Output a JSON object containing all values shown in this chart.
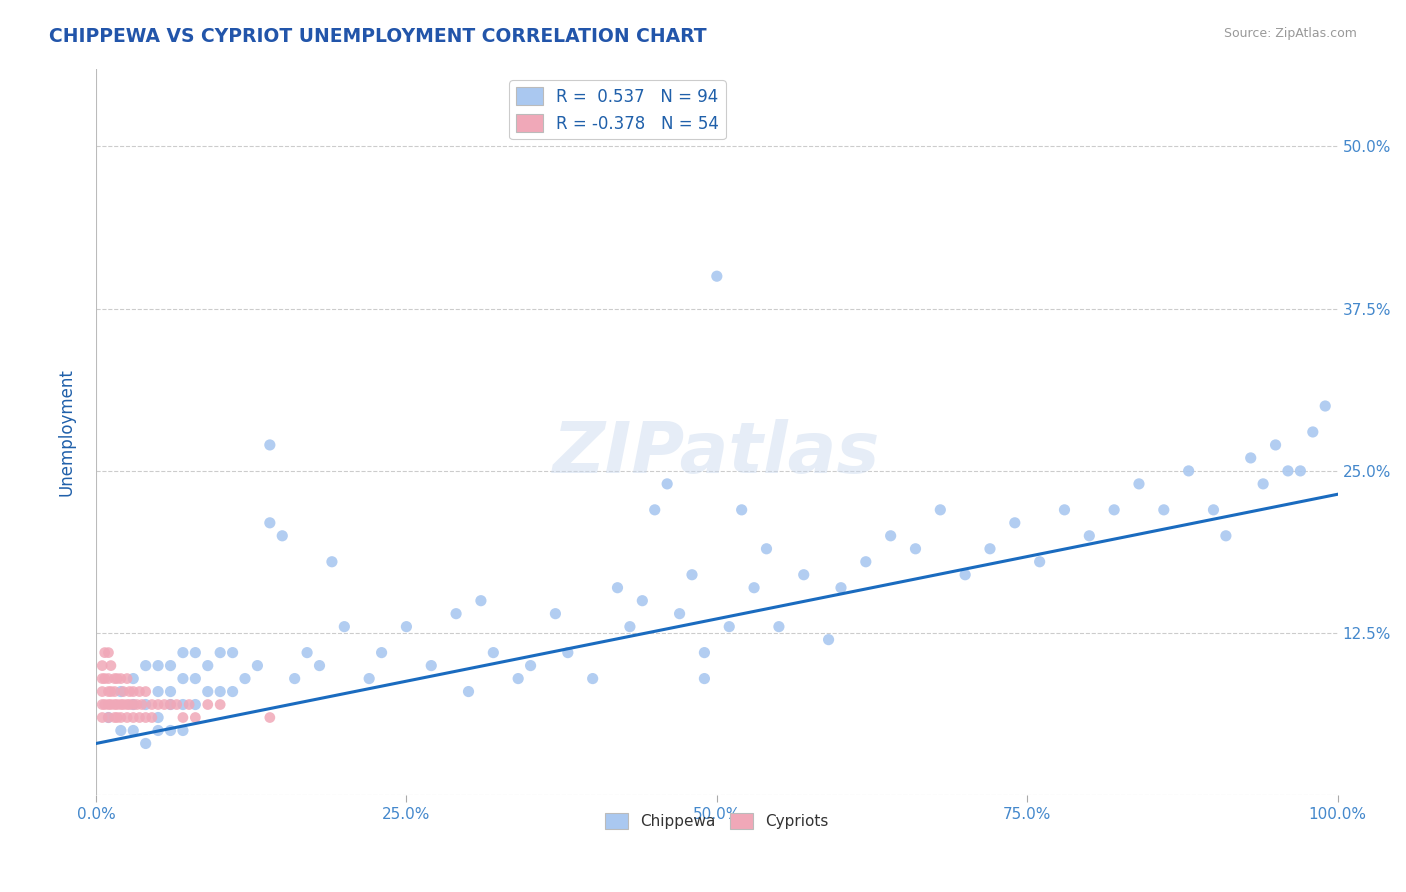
{
  "title": "CHIPPEWA VS CYPRIOT UNEMPLOYMENT CORRELATION CHART",
  "source_text": "Source: ZipAtlas.com",
  "ylabel": "Unemployment",
  "xlim": [
    0.0,
    1.0
  ],
  "ylim": [
    0.0,
    0.56
  ],
  "xticks": [
    0.0,
    0.25,
    0.5,
    0.75,
    1.0
  ],
  "xticklabels": [
    "0.0%",
    "25.0%",
    "50.0%",
    "75.0%",
    "100.0%"
  ],
  "yticks": [
    0.0,
    0.125,
    0.25,
    0.375,
    0.5
  ],
  "yticklabels": [
    "",
    "12.5%",
    "25.0%",
    "37.5%",
    "50.0%"
  ],
  "chippewa_color": "#aac8f0",
  "cypriot_color": "#f0a8b8",
  "trendline_color": "#1a6bbf",
  "chippewa_R": 0.537,
  "chippewa_N": 94,
  "cypriot_R": -0.378,
  "cypriot_N": 54,
  "title_color": "#2255aa",
  "axis_label_color": "#2060aa",
  "tick_label_color": "#4488cc",
  "watermark": "ZIPatlas",
  "trendline_x0": 0.0,
  "trendline_y0": 0.04,
  "trendline_x1": 1.0,
  "trendline_y1": 0.232,
  "chippewa_x": [
    0.01,
    0.02,
    0.02,
    0.03,
    0.03,
    0.03,
    0.04,
    0.04,
    0.04,
    0.05,
    0.05,
    0.05,
    0.05,
    0.06,
    0.06,
    0.06,
    0.06,
    0.07,
    0.07,
    0.07,
    0.07,
    0.08,
    0.08,
    0.08,
    0.09,
    0.09,
    0.1,
    0.1,
    0.11,
    0.11,
    0.12,
    0.13,
    0.14,
    0.15,
    0.16,
    0.17,
    0.18,
    0.19,
    0.2,
    0.22,
    0.23,
    0.25,
    0.27,
    0.29,
    0.3,
    0.31,
    0.32,
    0.34,
    0.35,
    0.37,
    0.38,
    0.4,
    0.42,
    0.43,
    0.44,
    0.45,
    0.46,
    0.47,
    0.48,
    0.49,
    0.5,
    0.51,
    0.52,
    0.53,
    0.54,
    0.55,
    0.57,
    0.59,
    0.6,
    0.62,
    0.64,
    0.66,
    0.68,
    0.7,
    0.72,
    0.74,
    0.76,
    0.78,
    0.8,
    0.82,
    0.84,
    0.86,
    0.88,
    0.9,
    0.91,
    0.93,
    0.94,
    0.95,
    0.96,
    0.97,
    0.98,
    0.99,
    0.14,
    0.49
  ],
  "chippewa_y": [
    0.06,
    0.05,
    0.08,
    0.05,
    0.07,
    0.09,
    0.04,
    0.07,
    0.1,
    0.05,
    0.06,
    0.08,
    0.1,
    0.05,
    0.07,
    0.08,
    0.1,
    0.05,
    0.07,
    0.09,
    0.11,
    0.07,
    0.09,
    0.11,
    0.08,
    0.1,
    0.08,
    0.11,
    0.08,
    0.11,
    0.09,
    0.1,
    0.27,
    0.2,
    0.09,
    0.11,
    0.1,
    0.18,
    0.13,
    0.09,
    0.11,
    0.13,
    0.1,
    0.14,
    0.08,
    0.15,
    0.11,
    0.09,
    0.1,
    0.14,
    0.11,
    0.09,
    0.16,
    0.13,
    0.15,
    0.22,
    0.24,
    0.14,
    0.17,
    0.11,
    0.4,
    0.13,
    0.22,
    0.16,
    0.19,
    0.13,
    0.17,
    0.12,
    0.16,
    0.18,
    0.2,
    0.19,
    0.22,
    0.17,
    0.19,
    0.21,
    0.18,
    0.22,
    0.2,
    0.22,
    0.24,
    0.22,
    0.25,
    0.22,
    0.2,
    0.26,
    0.24,
    0.27,
    0.25,
    0.25,
    0.28,
    0.3,
    0.21,
    0.09
  ],
  "cypriot_x": [
    0.005,
    0.005,
    0.005,
    0.005,
    0.005,
    0.007,
    0.007,
    0.007,
    0.01,
    0.01,
    0.01,
    0.01,
    0.01,
    0.012,
    0.012,
    0.012,
    0.015,
    0.015,
    0.015,
    0.015,
    0.017,
    0.017,
    0.017,
    0.02,
    0.02,
    0.02,
    0.022,
    0.022,
    0.025,
    0.025,
    0.025,
    0.027,
    0.027,
    0.03,
    0.03,
    0.03,
    0.033,
    0.035,
    0.035,
    0.037,
    0.04,
    0.04,
    0.045,
    0.045,
    0.05,
    0.055,
    0.06,
    0.065,
    0.07,
    0.075,
    0.08,
    0.09,
    0.1,
    0.14
  ],
  "cypriot_y": [
    0.06,
    0.08,
    0.1,
    0.07,
    0.09,
    0.07,
    0.09,
    0.11,
    0.07,
    0.09,
    0.11,
    0.08,
    0.06,
    0.08,
    0.1,
    0.07,
    0.07,
    0.09,
    0.06,
    0.08,
    0.07,
    0.09,
    0.06,
    0.07,
    0.09,
    0.06,
    0.07,
    0.08,
    0.07,
    0.09,
    0.06,
    0.07,
    0.08,
    0.07,
    0.06,
    0.08,
    0.07,
    0.06,
    0.08,
    0.07,
    0.06,
    0.08,
    0.07,
    0.06,
    0.07,
    0.07,
    0.07,
    0.07,
    0.06,
    0.07,
    0.06,
    0.07,
    0.07,
    0.06
  ]
}
